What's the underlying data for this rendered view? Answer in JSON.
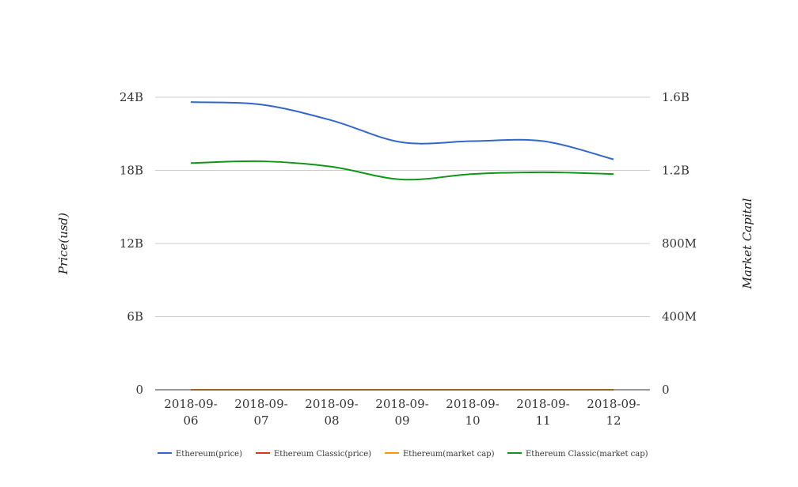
{
  "chart_data": {
    "type": "line",
    "title": "",
    "categories": [
      "2018-09-06",
      "2018-09-07",
      "2018-09-08",
      "2018-09-09",
      "2018-09-10",
      "2018-09-11",
      "2018-09-12"
    ],
    "y_left": {
      "label": "Price(usd)",
      "range": [
        0,
        24000000000
      ],
      "ticks": [
        0,
        6000000000,
        12000000000,
        18000000000,
        24000000000
      ],
      "tick_labels": [
        "0",
        "6B",
        "12B",
        "18B",
        "24B"
      ]
    },
    "y_right": {
      "label": "Market Capital",
      "range": [
        0,
        1600000000
      ],
      "ticks": [
        0,
        400000000,
        800000000,
        1200000000,
        1600000000
      ],
      "tick_labels": [
        "0",
        "400M",
        "800M",
        "1.2B",
        "1.6B"
      ]
    },
    "grid": true,
    "legend_position": "bottom",
    "series": [
      {
        "name": "Ethereum(price)",
        "color": "#3366cc",
        "axis": "left",
        "values": [
          23600000000,
          23400000000,
          22100000000,
          20300000000,
          20400000000,
          20400000000,
          18900000000
        ]
      },
      {
        "name": "Ethereum Classic(price)",
        "color": "#dc3912",
        "axis": "left",
        "values": [
          12,
          12,
          11,
          11,
          11,
          11,
          11
        ]
      },
      {
        "name": "Ethereum(market cap)",
        "color": "#ff9900",
        "axis": "right",
        "values": [
          230,
          228,
          215,
          198,
          199,
          199,
          184
        ]
      },
      {
        "name": "Ethereum Classic(market cap)",
        "color": "#109618",
        "axis": "right",
        "values": [
          1240000000,
          1250000000,
          1220000000,
          1150000000,
          1180000000,
          1190000000,
          1180000000
        ]
      }
    ]
  }
}
